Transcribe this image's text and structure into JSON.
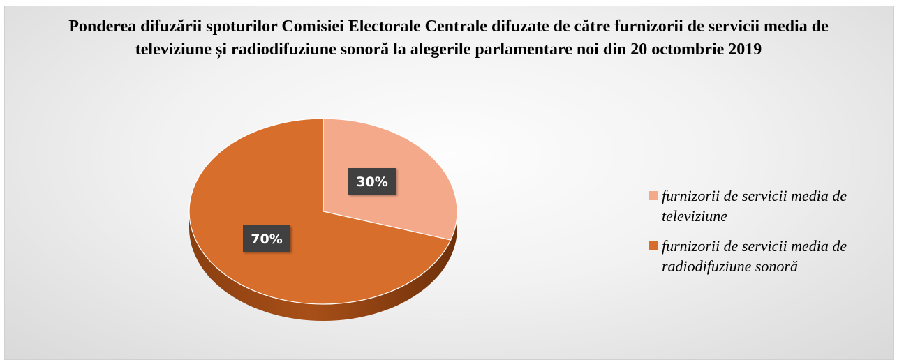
{
  "chart_data": {
    "type": "pie",
    "title": "Ponderea difuzării spoturilor Comisiei Electorale Centrale difuzate de către furnizorii de servicii media de televiziune și radiodifuziune sonoră la alegerile parlamentare noi din 20 octombrie 2019",
    "slices": [
      {
        "label": "furnizorii de servicii media de televiziune",
        "value": 30,
        "display": "30%",
        "color": "#F4A98A"
      },
      {
        "label": "furnizorii de servicii media de radiodifuziune sonoră",
        "value": 70,
        "display": "70%",
        "color": "#D86E2C"
      }
    ],
    "legend_position": "right",
    "style": "3d-pie"
  }
}
